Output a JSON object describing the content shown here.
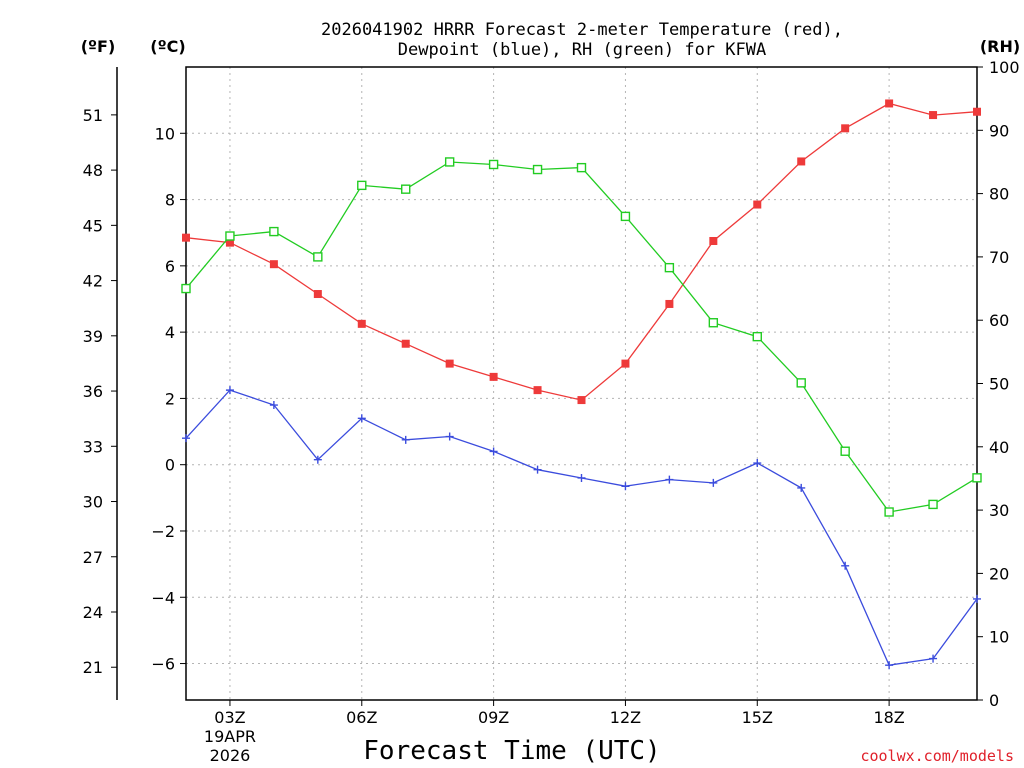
{
  "chart_data": {
    "type": "line",
    "title": [
      "2026041902 HRRR Forecast 2-meter Temperature (red),",
      "Dewpoint (blue), RH (green) for KFWA"
    ],
    "xlabel": "Forecast Time (UTC)",
    "credit": "coolwx.com/models",
    "units": {
      "fahrenheit": "(ºF)",
      "celsius": "(ºC)",
      "rh": "(RH)"
    },
    "x": [
      2,
      3,
      4,
      5,
      6,
      7,
      8,
      9,
      10,
      11,
      12,
      13,
      14,
      15,
      16,
      17,
      18,
      19,
      20
    ],
    "xlim": [
      2,
      20
    ],
    "x_ticks": [
      {
        "x": 3,
        "label": "03Z",
        "sub1": "19APR",
        "sub2": "2026"
      },
      {
        "x": 6,
        "label": "06Z"
      },
      {
        "x": 9,
        "label": "09Z"
      },
      {
        "x": 12,
        "label": "12Z"
      },
      {
        "x": 15,
        "label": "15Z"
      },
      {
        "x": 18,
        "label": "18Z"
      }
    ],
    "y_celsius": {
      "lim": [
        -7.1,
        12
      ],
      "ticks": [
        -6,
        -4,
        -2,
        0,
        2,
        4,
        6,
        8,
        10
      ],
      "labels": [
        "−6",
        "−4",
        "−2",
        "0",
        "2",
        "4",
        "6",
        "8",
        "10"
      ]
    },
    "y_fahrenheit": {
      "ticks": [
        21,
        24,
        27,
        30,
        33,
        36,
        39,
        42,
        45,
        48,
        51
      ],
      "labels": [
        "21",
        "24",
        "27",
        "30",
        "33",
        "36",
        "39",
        "42",
        "45",
        "48",
        "51"
      ]
    },
    "y_rh": {
      "lim": [
        0,
        100
      ],
      "ticks": [
        0,
        10,
        20,
        30,
        40,
        50,
        60,
        70,
        80,
        90,
        100
      ],
      "labels": [
        "0",
        "10",
        "20",
        "30",
        "40",
        "50",
        "60",
        "70",
        "80",
        "90",
        "100"
      ]
    },
    "series": [
      {
        "name": "2-meter Temperature",
        "axis": "celsius",
        "color": "#ee3a3a",
        "marker": "filled-square",
        "values": [
          6.85,
          6.7,
          6.05,
          5.15,
          4.25,
          3.65,
          3.05,
          2.65,
          2.25,
          1.95,
          3.05,
          4.85,
          6.75,
          7.85,
          9.15,
          10.15,
          10.9,
          10.55,
          10.65
        ]
      },
      {
        "name": "Dewpoint",
        "axis": "celsius",
        "color": "#3b4cdd",
        "marker": "plus",
        "values": [
          0.8,
          2.25,
          1.8,
          0.15,
          1.4,
          0.75,
          0.85,
          0.4,
          -0.15,
          -0.4,
          -0.65,
          -0.45,
          -0.55,
          0.05,
          -0.7,
          -3.05,
          -6.05,
          -5.85,
          -4.05
        ]
      },
      {
        "name": "Relative Humidity",
        "axis": "rh",
        "color": "#22cc22",
        "marker": "open-square",
        "values": [
          65,
          73.3,
          74,
          70,
          81.3,
          80.7,
          85,
          84.6,
          83.8,
          84.1,
          76.4,
          68.3,
          59.6,
          57.4,
          50.1,
          39.3,
          29.7,
          30.9,
          35.1
        ]
      }
    ]
  }
}
